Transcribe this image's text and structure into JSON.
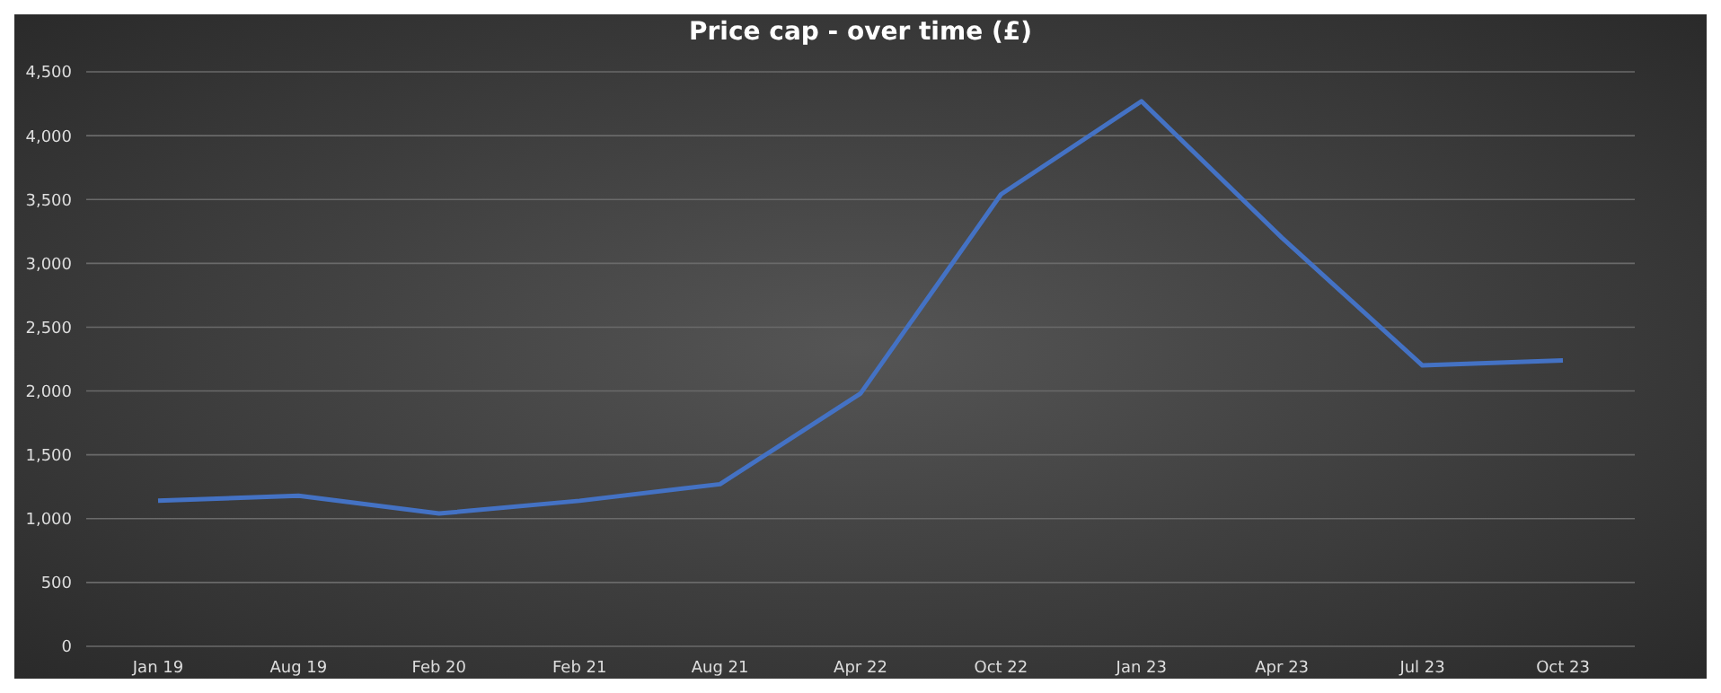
{
  "chart_data": {
    "type": "line",
    "title": "Price cap - over time (£)",
    "categories": [
      "Jan 19",
      "Aug 19",
      "Feb 20",
      "Feb 21",
      "Aug 21",
      "Apr 22",
      "Oct 22",
      "Jan 23",
      "Apr 23",
      "Jul 23",
      "Oct 23"
    ],
    "series": [
      {
        "color": "#4472c4",
        "values": [
          1140,
          1180,
          1040,
          1140,
          1270,
          1980,
          3540,
          4270,
          3200,
          2200,
          2240
        ]
      }
    ],
    "ylim": [
      0,
      4500
    ],
    "yticks": [
      {
        "value": 0,
        "label": "0"
      },
      {
        "value": 500,
        "label": "500"
      },
      {
        "value": 1000,
        "label": "1,000"
      },
      {
        "value": 1500,
        "label": "1,500"
      },
      {
        "value": 2000,
        "label": "2,000"
      },
      {
        "value": 2500,
        "label": "2,500"
      },
      {
        "value": 3000,
        "label": "3,000"
      },
      {
        "value": 3500,
        "label": "3,500"
      },
      {
        "value": 4000,
        "label": "4,000"
      },
      {
        "value": 4500,
        "label": "4,500"
      }
    ],
    "grid": "y",
    "marker": "none",
    "line_style": "solid"
  }
}
